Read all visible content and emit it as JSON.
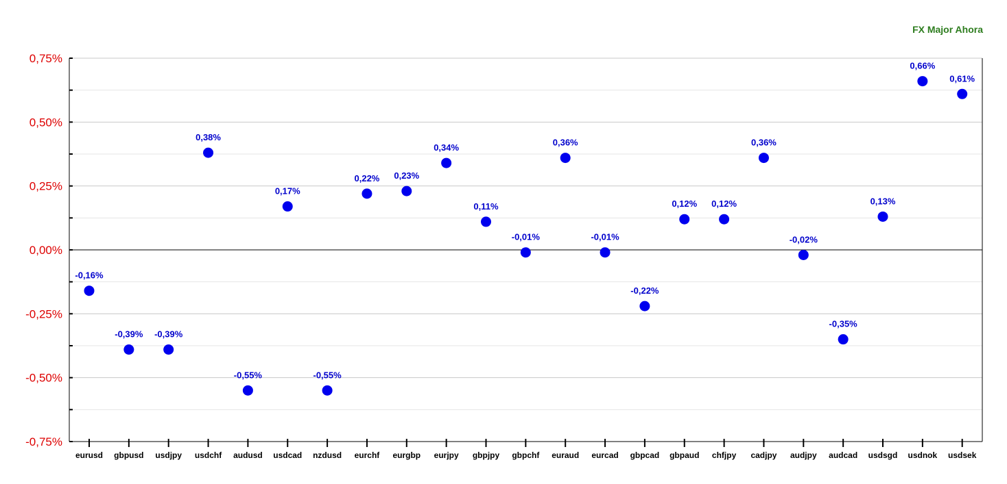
{
  "chart_data": {
    "type": "scatter",
    "title": "FX Major Ahora",
    "categories": [
      "eurusd",
      "gbpusd",
      "usdjpy",
      "usdchf",
      "audusd",
      "usdcad",
      "nzdusd",
      "eurchf",
      "eurgbp",
      "eurjpy",
      "gbpjpy",
      "gbpchf",
      "euraud",
      "eurcad",
      "gbpcad",
      "gbpaud",
      "chfjpy",
      "cadjpy",
      "audjpy",
      "audcad",
      "usdsgd",
      "usdnok",
      "usdsek"
    ],
    "values": [
      -0.16,
      -0.39,
      -0.39,
      0.38,
      -0.55,
      0.17,
      -0.55,
      0.22,
      0.23,
      0.34,
      0.11,
      -0.01,
      0.36,
      -0.01,
      -0.22,
      0.12,
      0.12,
      0.36,
      -0.02,
      -0.35,
      0.13,
      0.66,
      0.61
    ],
    "data_labels": [
      "-0,16%",
      "-0,39%",
      "-0,39%",
      "0,38%",
      "-0,55%",
      "0,17%",
      "-0,55%",
      "0,22%",
      "0,23%",
      "0,34%",
      "0,11%",
      "-0,01%",
      "0,36%",
      "-0,01%",
      "-0,22%",
      "0,12%",
      "0,12%",
      "0,36%",
      "-0,02%",
      "-0,35%",
      "0,13%",
      "0,66%",
      "0,61%"
    ],
    "y_ticks": [
      0.75,
      0.5,
      0.25,
      0,
      -0.25,
      -0.5,
      -0.75
    ],
    "y_tick_labels": [
      "0,75%",
      "0,50%",
      "0,25%",
      "0,00%",
      "-0,25%",
      "-0,50%",
      "-0,75%"
    ],
    "ylim": [
      -0.75,
      0.75
    ],
    "grid": true,
    "colors": {
      "points": "#0000ee",
      "labels": "#0000cc",
      "y_ticks": "#dd0000",
      "title": "#2e7d1f"
    }
  }
}
